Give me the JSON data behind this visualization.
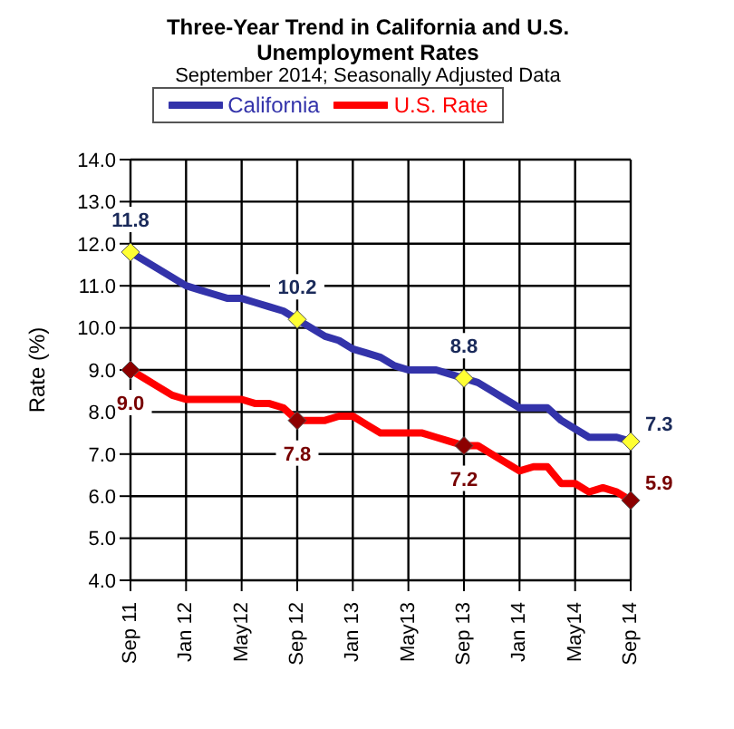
{
  "chart_data": {
    "type": "line",
    "title": "Three-Year Trend in California and U.S. Unemployment Rates",
    "subtitle": "September 2014; Seasonally Adjusted Data",
    "ylabel": "Rate (%)",
    "x": [
      "2011-09",
      "2011-10",
      "2011-11",
      "2011-12",
      "2012-01",
      "2012-02",
      "2012-03",
      "2012-04",
      "2012-05",
      "2012-06",
      "2012-07",
      "2012-08",
      "2012-09",
      "2012-10",
      "2012-11",
      "2012-12",
      "2013-01",
      "2013-02",
      "2013-03",
      "2013-04",
      "2013-05",
      "2013-06",
      "2013-07",
      "2013-08",
      "2013-09",
      "2013-10",
      "2013-11",
      "2013-12",
      "2014-01",
      "2014-02",
      "2014-03",
      "2014-04",
      "2014-05",
      "2014-06",
      "2014-07",
      "2014-08",
      "2014-09"
    ],
    "series": [
      {
        "name": "California",
        "color": "#3333aa",
        "values": [
          11.8,
          11.6,
          11.4,
          11.2,
          11.0,
          10.9,
          10.8,
          10.7,
          10.7,
          10.6,
          10.5,
          10.4,
          10.2,
          10.0,
          9.8,
          9.7,
          9.5,
          9.4,
          9.3,
          9.1,
          9.0,
          9.0,
          9.0,
          8.9,
          8.8,
          8.7,
          8.5,
          8.3,
          8.1,
          8.1,
          8.1,
          7.8,
          7.6,
          7.4,
          7.4,
          7.4,
          7.3
        ]
      },
      {
        "name": "U.S. Rate",
        "color": "#ff0000",
        "values": [
          9.0,
          8.8,
          8.6,
          8.4,
          8.3,
          8.3,
          8.3,
          8.3,
          8.3,
          8.2,
          8.2,
          8.1,
          7.8,
          7.8,
          7.8,
          7.9,
          7.9,
          7.7,
          7.5,
          7.5,
          7.5,
          7.5,
          7.4,
          7.3,
          7.2,
          7.2,
          7.0,
          6.8,
          6.6,
          6.7,
          6.7,
          6.3,
          6.3,
          6.1,
          6.2,
          6.1,
          5.9
        ]
      },
      {
        "type": "scatter",
        "color": "#ffff33",
        "x": [
          "2011-09",
          "2012-09",
          "2013-09",
          "2014-09"
        ],
        "values": [
          11.8,
          10.2,
          8.8,
          7.3
        ],
        "value_labels": [
          "11.8",
          "10.2",
          "8.8",
          "7.3"
        ]
      },
      {
        "type": "scatter",
        "color": "#8c0000",
        "x": [
          "2011-09",
          "2012-09",
          "2013-09",
          "2014-09"
        ],
        "values": [
          9.0,
          7.8,
          7.2,
          5.9
        ],
        "value_labels": [
          "9.0",
          "7.8",
          "7.2",
          "5.9"
        ]
      }
    ],
    "xlim": [
      "2011-09",
      "2014-09"
    ],
    "xticks": [
      {
        "value": "2011-09",
        "label": "Sep 11"
      },
      {
        "value": "2012-01",
        "label": "Jan 12"
      },
      {
        "value": "2012-05",
        "label": "May12"
      },
      {
        "value": "2012-09",
        "label": "Sep 12"
      },
      {
        "value": "2013-01",
        "label": "Jan 13"
      },
      {
        "value": "2013-05",
        "label": "May13"
      },
      {
        "value": "2013-09",
        "label": "Sep 13"
      },
      {
        "value": "2014-01",
        "label": "Jan 14"
      },
      {
        "value": "2014-05",
        "label": "May14"
      },
      {
        "value": "2014-09",
        "label": "Sep 14"
      }
    ],
    "ylim": [
      4,
      14
    ],
    "yticks": [
      {
        "value": 4,
        "label": "4.0"
      },
      {
        "value": 5,
        "label": "5.0"
      },
      {
        "value": 6,
        "label": "6.0"
      },
      {
        "value": 7,
        "label": "7.0"
      },
      {
        "value": 8,
        "label": "8.0"
      },
      {
        "value": 9,
        "label": "9.0"
      },
      {
        "value": 10,
        "label": "10.0"
      },
      {
        "value": 11,
        "label": "11.0"
      },
      {
        "value": 12,
        "label": "12.0"
      },
      {
        "value": 13,
        "label": "13.0"
      },
      {
        "value": 14,
        "label": "14.0"
      }
    ],
    "grid": true,
    "legend": "top",
    "line_style": "solid"
  }
}
